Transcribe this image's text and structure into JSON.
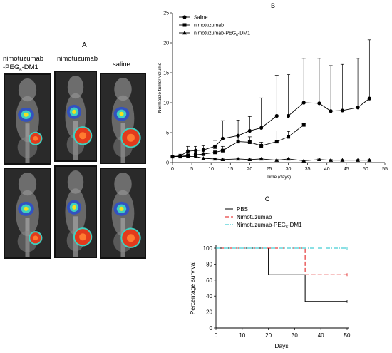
{
  "panel_a": {
    "letter": "A",
    "columns": [
      {
        "label_line1": "nimotuzumab",
        "label_line2": "-PEG",
        "label_sub": "6",
        "label_tail": "-DM1"
      },
      {
        "label_line1": "nimotuzumab"
      },
      {
        "label_line1": "saline"
      }
    ],
    "image_rows": 2,
    "heat_colors": {
      "low": "#2a4fd0",
      "mid": "#3fd0c0",
      "high": "#e23a1c",
      "hot": "#f3e020"
    }
  },
  "chart_data": [
    {
      "panel": "B",
      "type": "line",
      "xlabel": "Time (days)",
      "ylabel": "Normalize tumor volume",
      "xlim": [
        0,
        55
      ],
      "ylim": [
        0,
        25
      ],
      "xticks": [
        0,
        5,
        10,
        15,
        20,
        25,
        30,
        35,
        40,
        45,
        50,
        55
      ],
      "yticks": [
        0,
        5,
        10,
        15,
        20,
        25
      ],
      "legend_position": "top-left",
      "series": [
        {
          "name": "Saline",
          "marker": "circle",
          "x": [
            0,
            2,
            4,
            6,
            8,
            11,
            13,
            17,
            20,
            23,
            27,
            30,
            34,
            38,
            41,
            44,
            48,
            51
          ],
          "y": [
            1.0,
            1.1,
            1.9,
            2.0,
            2.1,
            2.7,
            4.0,
            4.5,
            5.3,
            5.8,
            7.8,
            7.8,
            10.0,
            9.9,
            8.6,
            8.7,
            9.2,
            10.7
          ],
          "err": [
            0.2,
            0.3,
            0.8,
            0.7,
            0.7,
            1.0,
            3.0,
            2.6,
            2.4,
            5.0,
            6.8,
            6.9,
            7.4,
            7.5,
            7.6,
            7.7,
            8.2,
            9.8
          ]
        },
        {
          "name": "nimotuzumab",
          "marker": "square",
          "x": [
            0,
            2,
            4,
            6,
            8,
            11,
            13,
            17,
            20,
            23,
            27,
            30,
            34
          ],
          "y": [
            1.0,
            1.0,
            1.2,
            1.3,
            1.4,
            1.7,
            2.0,
            3.5,
            3.4,
            2.8,
            3.5,
            4.3,
            6.3
          ],
          "err": [
            0.2,
            0.2,
            0.4,
            0.4,
            0.5,
            0.6,
            0.7,
            0.9,
            0.9,
            0.6,
            1.8,
            0.9,
            0.2
          ]
        },
        {
          "name": "nimotuzumab-PEG6-DM1",
          "name_main": "nimotuzumab-PEG",
          "name_sub": "6",
          "name_tail": "-DM1",
          "marker": "triangle",
          "x": [
            0,
            2,
            4,
            6,
            8,
            11,
            13,
            17,
            20,
            23,
            27,
            30,
            34,
            38,
            41,
            44,
            48,
            51
          ],
          "y": [
            1.0,
            1.0,
            1.0,
            1.0,
            0.7,
            0.6,
            0.5,
            0.6,
            0.5,
            0.6,
            0.4,
            0.6,
            0.3,
            0.5,
            0.4,
            0.4,
            0.4,
            0.4
          ],
          "err": [
            0.1,
            0.1,
            0.1,
            0.1,
            0.1,
            0.1,
            0.1,
            0.1,
            0.1,
            0.1,
            0.1,
            0.1,
            0.1,
            0.1,
            0.1,
            0.1,
            0.1,
            0.1
          ]
        }
      ]
    },
    {
      "panel": "C",
      "type": "line",
      "step": true,
      "xlabel": "Days",
      "ylabel": "Percentage survival",
      "xlim": [
        0,
        50
      ],
      "ylim": [
        0,
        100
      ],
      "xticks": [
        0,
        10,
        20,
        30,
        40,
        50
      ],
      "yticks": [
        0,
        20,
        40,
        60,
        80,
        100
      ],
      "legend_position": "top",
      "series": [
        {
          "name": "PBS",
          "color": "#000000",
          "dash": "solid",
          "points": [
            [
              0,
              100
            ],
            [
              20,
              100
            ],
            [
              20,
              66.7
            ],
            [
              34,
              66.7
            ],
            [
              34,
              33.3
            ],
            [
              50,
              33.3
            ]
          ]
        },
        {
          "name": "Nimotuzumab",
          "color": "#e01010",
          "dash": "6,3",
          "points": [
            [
              0,
              100
            ],
            [
              20,
              100
            ],
            [
              34,
              100
            ],
            [
              34,
              66.7
            ],
            [
              50,
              66.7
            ]
          ]
        },
        {
          "name": "Nimotuzumab-PEG6-DM1",
          "name_main": "Nimotuzumab-PEG",
          "name_sub": "6",
          "name_tail": "-DM1",
          "color": "#17c0c8",
          "dash": "6,2,1,2",
          "points": [
            [
              0,
              100
            ],
            [
              20,
              100
            ],
            [
              50,
              100
            ]
          ]
        }
      ]
    }
  ]
}
